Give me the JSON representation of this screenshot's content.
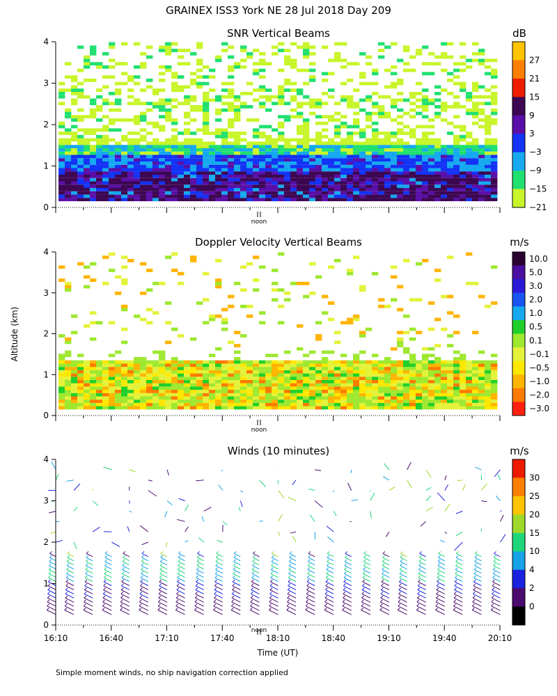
{
  "title": "GRAINEX ISS3 York NE  28 Jul 2018 Day 209",
  "footer": "Simple moment winds, no ship navigation correction applied",
  "noon_label": "noon",
  "chart_data": [
    {
      "type": "heatmap",
      "title": "SNR Vertical Beams",
      "ylabel": "",
      "ylim": [
        0,
        4
      ],
      "yticks": [
        "0",
        "1",
        "2",
        "3",
        "4"
      ],
      "colorbar_unit": "dB",
      "colorbar_labels": [
        "27",
        "21",
        "15",
        "9",
        "3",
        "−3",
        "−9",
        "−15",
        "−21"
      ],
      "colorbar_colors": [
        "#ffc400",
        "#ff8000",
        "#ee1c00",
        "#3d0752",
        "#5a0fa8",
        "#1433f5",
        "#16a9ef",
        "#20e070",
        "#c8f52a"
      ],
      "layers": [
        {
          "label": "-21 to -15 dB",
          "altitude_km": [
            1.5,
            3.9
          ]
        },
        {
          "label": "-15 to -3 dB",
          "altitude_km": [
            1.2,
            1.5
          ]
        },
        {
          "label": "-3 to 3 dB",
          "altitude_km": [
            0.85,
            1.25
          ]
        },
        {
          "label": "3 to 15 dB",
          "altitude_km": [
            0.15,
            0.85
          ]
        }
      ]
    },
    {
      "type": "heatmap",
      "title": "Doppler Velocity Vertical Beams",
      "ylabel": "Altitude (km)",
      "ylim": [
        0,
        4
      ],
      "yticks": [
        "0",
        "1",
        "2",
        "3",
        "4"
      ],
      "colorbar_unit": "m/s",
      "colorbar_labels": [
        "10.0",
        "5.0",
        "3.0",
        "2.0",
        "1.0",
        "0.5",
        "0.1",
        "−0.1",
        "−0.5",
        "−1.0",
        "−2.0",
        "−3.0"
      ],
      "colorbar_colors": [
        "#2a0030",
        "#4a0fa0",
        "#2a1ad8",
        "#1a55f0",
        "#16a9ef",
        "#20d02a",
        "#9ee830",
        "#e4f23a",
        "#ffe800",
        "#ffb400",
        "#ff7a00",
        "#ff2010"
      ],
      "layers": [
        {
          "label": "-0.1 to 0.5 m/s",
          "altitude_km": [
            0.15,
            1.35
          ]
        },
        {
          "label": "scattered echoes",
          "altitude_km": [
            1.4,
            3.9
          ]
        }
      ]
    },
    {
      "type": "scatter",
      "title": "Winds (10 minutes)",
      "ylabel": "",
      "xlabel": "Time (UT)",
      "ylim": [
        0,
        4
      ],
      "yticks": [
        "0",
        "1",
        "2",
        "3",
        "4"
      ],
      "xticks": [
        "16:10",
        "16:40",
        "17:10",
        "17:40",
        "18:10",
        "18:40",
        "19:10",
        "19:40",
        "20:10"
      ],
      "colorbar_unit": "m/s",
      "colorbar_labels": [
        "30",
        "25",
        "20",
        "15",
        "10",
        "4",
        "2",
        "0"
      ],
      "colorbar_colors": [
        "#ee1a00",
        "#ff8000",
        "#ffc400",
        "#9ed82a",
        "#1ed67a",
        "#16a2e8",
        "#1a22e0",
        "#4a0a6e",
        "#000000"
      ],
      "wind_columns": [
        16.17,
        16.33,
        16.5,
        16.67,
        16.83,
        17.0,
        17.17,
        17.33,
        17.5,
        17.67,
        17.83,
        18.0,
        18.17,
        18.33,
        18.5,
        18.67,
        18.83,
        19.0,
        19.17,
        19.33,
        19.5,
        19.67,
        19.83,
        20.0,
        20.17
      ]
    }
  ]
}
